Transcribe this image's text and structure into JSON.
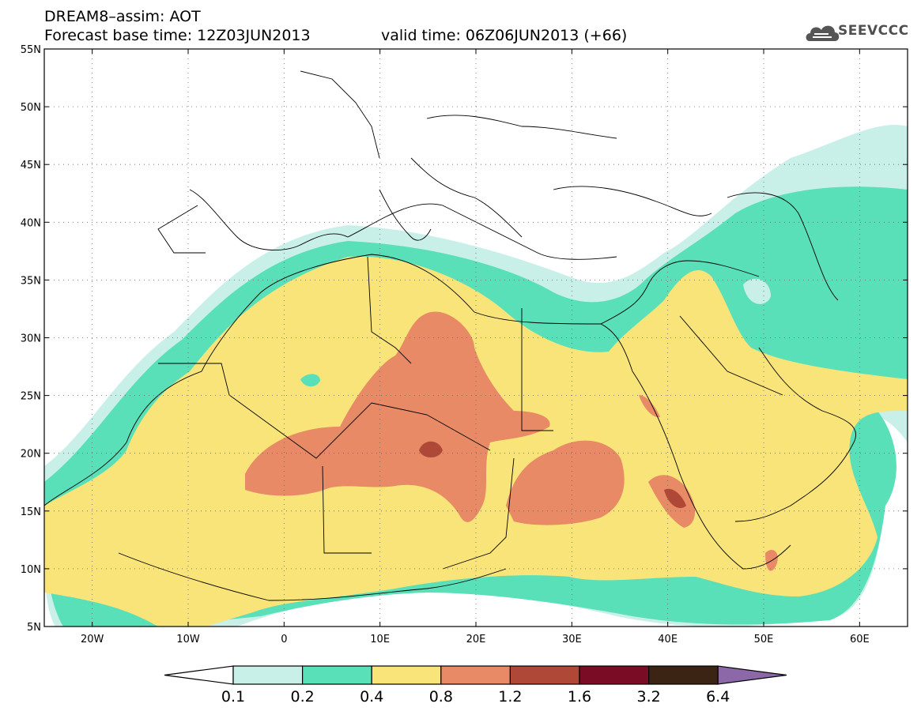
{
  "header": {
    "title": "DREAM8–assim: AOT",
    "base_time": "Forecast base time: 12Z03JUN2013",
    "valid_time": "valid time: 06Z06JUN2013 (+66)"
  },
  "logo": {
    "text": "SEEVCCC",
    "icon": "cloud-icon"
  },
  "map": {
    "lat_ticks": [
      "55N",
      "50N",
      "45N",
      "40N",
      "35N",
      "30N",
      "25N",
      "20N",
      "15N",
      "10N",
      "5N"
    ],
    "lon_ticks": [
      "20W",
      "10W",
      "0",
      "10E",
      "20E",
      "30E",
      "40E",
      "50E",
      "60E"
    ],
    "lon_range": [
      -25,
      65
    ],
    "lat_range": [
      5,
      55
    ]
  },
  "legend": {
    "levels": [
      "0.1",
      "0.2",
      "0.4",
      "0.8",
      "1.2",
      "1.6",
      "3.2",
      "6.4"
    ],
    "colors": [
      "#ffffff",
      "#c8f0e8",
      "#5ae0b8",
      "#f8e478",
      "#e88a66",
      "#b04838",
      "#7a0c26",
      "#3c2414",
      "#8c68a8"
    ]
  }
}
